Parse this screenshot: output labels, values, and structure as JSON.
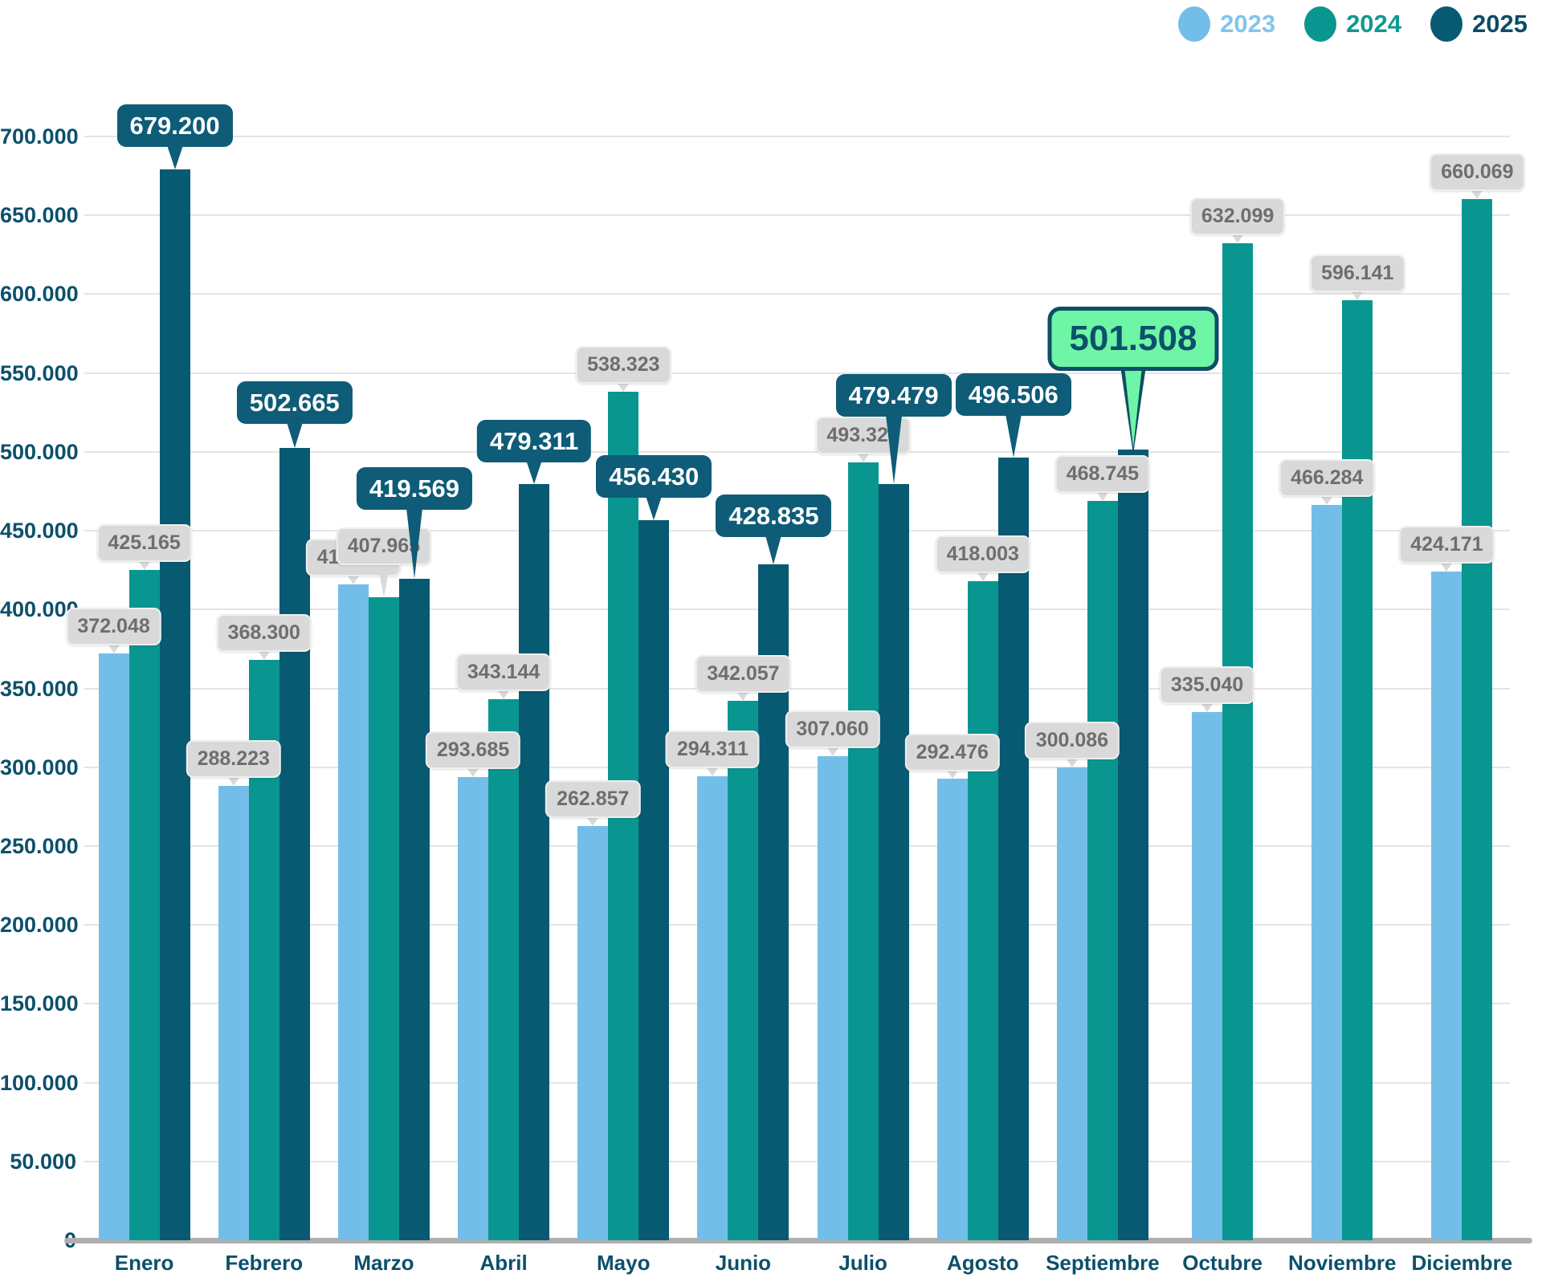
{
  "legend": {
    "items": [
      {
        "label": "2023",
        "color": "#73bee8",
        "text_color": "#82c5ec"
      },
      {
        "label": "2024",
        "color": "#0a9690",
        "text_color": "#0f9a90"
      },
      {
        "label": "2025",
        "color": "#085a72",
        "text_color": "#0d4c66"
      }
    ]
  },
  "chart_data": {
    "type": "bar",
    "title": "",
    "categories": [
      "Enero",
      "Febrero",
      "Marzo",
      "Abril",
      "Mayo",
      "Junio",
      "Julio",
      "Agosto",
      "Septiembre",
      "Octubre",
      "Noviembre",
      "Diciembre"
    ],
    "series": [
      {
        "name": "2023",
        "color": "#73bee8",
        "values": [
          372048,
          288223,
          415961,
          293685,
          262857,
          294311,
          307060,
          292476,
          300086,
          335040,
          466284,
          424171
        ],
        "labels": [
          "372.048",
          "288.223",
          "415.961",
          "293.685",
          "262.857",
          "294.311",
          "307.060",
          "292.476",
          "300.086",
          "335.040",
          "466.284",
          "424.171"
        ],
        "label_styles": [
          "gray",
          "gray",
          "gray",
          "gray",
          "gray",
          "gray",
          "gray",
          "gray",
          "gray",
          "gray",
          "gray",
          "gray"
        ]
      },
      {
        "name": "2024",
        "color": "#0a9690",
        "values": [
          425165,
          368300,
          407965,
          343144,
          538323,
          342057,
          493329,
          418003,
          468745,
          632099,
          596141,
          660069
        ],
        "labels": [
          "425.165",
          "368.300",
          "407.965",
          "343.144",
          "538.323",
          "342.057",
          "493.329",
          "418.003",
          "468.745",
          "632.099",
          "596.141",
          "660.069"
        ],
        "label_styles": [
          "gray",
          "gray",
          "gray",
          "gray",
          "gray",
          "gray",
          "gray",
          "gray",
          "gray",
          "gray",
          "gray",
          "gray"
        ]
      },
      {
        "name": "2025",
        "color": "#085a72",
        "values": [
          679200,
          502665,
          419569,
          479311,
          456430,
          428835,
          479479,
          496506,
          501508,
          null,
          null,
          null
        ],
        "labels": [
          "679.200",
          "502.665",
          "419.569",
          "479.311",
          "456.430",
          "428.835",
          "479.479",
          "496.506",
          "501.508",
          null,
          null,
          null
        ],
        "label_styles": [
          "dark",
          "dark",
          "dark",
          "dark",
          "dark",
          "dark",
          "dark",
          "dark",
          "highlight",
          null,
          null,
          null
        ]
      }
    ],
    "yaxis": {
      "min": 0,
      "max": 700000,
      "step": 50000,
      "tick_labels": [
        "0",
        "50.000",
        "100.000",
        "150.000",
        "200.000",
        "250.000",
        "300.000",
        "350.000",
        "400.000",
        "450.000",
        "500.000",
        "550.000",
        "600.000",
        "650.000",
        "700.000"
      ]
    },
    "grid": true,
    "legend_position": "top-right"
  },
  "styles": {
    "gray_label_bg": "#d9d9d9",
    "gray_label_text": "#6e6e6e",
    "dark_label_bg": "#0e5c77",
    "dark_label_text": "#ffffff",
    "highlight_bg": "#6ff5a6",
    "highlight_border": "#0d4f66",
    "highlight_text": "#0c516b",
    "grid_color": "#e4e4e4",
    "axis_color": "#aeaeae",
    "tick_color": "#0c506b"
  }
}
